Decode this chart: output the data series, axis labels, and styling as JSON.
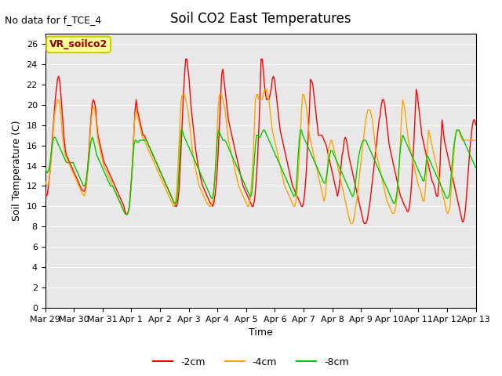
{
  "title": "Soil CO2 East Temperatures",
  "no_data_text": "No data for f_TCE_4",
  "ylabel": "Soil Temperature (C)",
  "xlabel": "Time",
  "annotation_label": "VR_soilco2",
  "ylim": [
    0,
    27
  ],
  "yticks": [
    0,
    2,
    4,
    6,
    8,
    10,
    12,
    14,
    16,
    18,
    20,
    22,
    24,
    26
  ],
  "x_tick_labels": [
    "Mar 29",
    "Mar 30",
    "Mar 31",
    "Apr 1",
    "Apr 2",
    "Apr 3",
    "Apr 4",
    "Apr 5",
    "Apr 6",
    "Apr 7",
    "Apr 8",
    "Apr 9",
    "Apr 10",
    "Apr 11",
    "Apr 12",
    "Apr 13"
  ],
  "colors": {
    "2cm": "#ff0000",
    "4cm": "#ffa500",
    "8cm": "#00cc00"
  },
  "background_color": "#e8e8e8",
  "legend_labels": [
    "-2cm",
    "-4cm",
    "-8cm"
  ],
  "num_points": 336,
  "data_2cm": [
    11.5,
    11.0,
    11.2,
    12.0,
    13.0,
    14.5,
    16.0,
    17.5,
    19.0,
    20.5,
    21.5,
    22.5,
    22.8,
    22.3,
    21.0,
    19.5,
    18.0,
    16.5,
    15.5,
    15.0,
    14.8,
    14.5,
    14.3,
    14.0,
    13.8,
    13.5,
    13.3,
    13.0,
    12.8,
    12.5,
    12.3,
    12.0,
    11.8,
    11.6,
    11.5,
    11.5,
    12.0,
    12.8,
    14.0,
    15.5,
    17.5,
    19.0,
    20.2,
    20.5,
    20.2,
    19.5,
    18.0,
    17.0,
    16.5,
    16.0,
    15.5,
    15.0,
    14.5,
    14.2,
    14.0,
    13.8,
    13.5,
    13.3,
    13.0,
    12.8,
    12.5,
    12.3,
    12.0,
    11.8,
    11.5,
    11.3,
    11.0,
    10.8,
    10.5,
    10.3,
    10.0,
    9.5,
    9.3,
    9.2,
    9.5,
    10.0,
    11.5,
    13.0,
    15.0,
    17.5,
    19.5,
    20.5,
    19.5,
    19.0,
    18.5,
    18.0,
    17.5,
    17.0,
    17.0,
    16.8,
    16.5,
    16.3,
    16.0,
    15.8,
    15.5,
    15.3,
    15.0,
    14.8,
    14.5,
    14.3,
    14.0,
    13.8,
    13.5,
    13.3,
    13.0,
    12.8,
    12.5,
    12.2,
    12.0,
    11.8,
    11.5,
    11.3,
    11.0,
    10.8,
    10.5,
    10.3,
    10.0,
    10.0,
    10.5,
    11.5,
    13.5,
    16.0,
    18.5,
    21.0,
    23.0,
    24.5,
    24.5,
    23.5,
    22.5,
    21.0,
    19.5,
    18.5,
    17.5,
    16.5,
    15.5,
    14.8,
    14.0,
    13.5,
    13.0,
    12.5,
    12.0,
    11.8,
    11.5,
    11.3,
    11.0,
    10.8,
    10.5,
    10.3,
    10.2,
    10.0,
    10.3,
    11.0,
    12.0,
    13.5,
    15.5,
    18.0,
    20.5,
    23.0,
    23.5,
    22.5,
    21.5,
    20.5,
    19.5,
    18.5,
    18.0,
    17.5,
    17.0,
    16.5,
    16.0,
    15.5,
    15.0,
    14.5,
    14.0,
    13.5,
    13.0,
    12.5,
    12.0,
    11.8,
    11.5,
    11.3,
    11.0,
    10.8,
    10.5,
    10.3,
    10.0,
    10.0,
    10.5,
    11.5,
    13.0,
    15.0,
    17.5,
    20.5,
    24.5,
    24.5,
    23.5,
    22.0,
    21.0,
    20.5,
    20.5,
    20.5,
    21.0,
    21.5,
    22.5,
    22.8,
    22.5,
    21.5,
    20.5,
    19.5,
    18.5,
    17.5,
    17.0,
    16.5,
    16.0,
    15.5,
    15.0,
    14.5,
    14.0,
    13.5,
    13.0,
    12.5,
    12.0,
    11.8,
    11.5,
    11.3,
    11.0,
    10.8,
    10.5,
    10.3,
    10.0,
    10.0,
    10.5,
    11.5,
    13.0,
    15.0,
    17.0,
    19.5,
    22.5,
    22.3,
    22.0,
    21.0,
    20.0,
    19.0,
    18.0,
    17.0,
    17.0,
    17.0,
    17.0,
    16.8,
    16.5,
    16.3,
    16.0,
    15.5,
    15.0,
    14.5,
    14.0,
    13.5,
    13.0,
    12.5,
    12.0,
    11.5,
    11.0,
    11.5,
    12.5,
    13.8,
    15.0,
    15.5,
    16.5,
    16.8,
    16.5,
    15.8,
    15.0,
    14.5,
    14.0,
    13.5,
    13.0,
    12.5,
    12.0,
    11.5,
    11.0,
    10.5,
    10.0,
    9.5,
    9.0,
    8.5,
    8.3,
    8.3,
    8.5,
    9.0,
    9.8,
    10.5,
    11.5,
    12.5,
    13.5,
    14.5,
    15.5,
    16.5,
    17.5,
    18.5,
    19.0,
    20.0,
    20.5,
    20.5,
    20.0,
    19.0,
    18.0,
    17.0,
    16.0,
    15.5,
    15.0,
    14.5,
    14.0,
    13.5,
    13.0,
    12.5,
    12.0,
    11.5,
    11.0,
    10.8,
    10.5,
    10.2,
    10.0,
    9.8,
    9.5,
    9.5,
    10.0,
    11.0,
    12.5,
    14.5,
    16.5,
    19.0,
    21.5,
    21.0,
    20.0,
    19.0,
    18.0,
    17.0,
    16.5,
    16.0,
    15.5,
    15.0,
    14.5,
    14.0,
    13.5,
    13.0,
    12.5,
    12.3,
    12.0,
    11.5,
    11.0,
    11.0,
    12.0,
    13.5,
    16.5,
    18.5,
    17.5,
    16.5,
    16.0,
    15.5,
    15.0,
    14.5,
    14.0,
    13.5,
    13.0,
    12.5,
    12.0,
    11.5,
    11.0,
    10.5,
    10.0,
    9.5,
    9.0,
    8.5,
    8.5,
    9.0,
    10.0,
    11.5,
    13.0,
    14.5,
    16.0,
    17.0,
    18.0,
    18.5,
    18.5,
    18.0
  ],
  "data_4cm": [
    12.5,
    12.2,
    12.0,
    12.2,
    13.0,
    14.0,
    15.5,
    17.0,
    18.5,
    19.5,
    20.0,
    20.5,
    20.5,
    20.0,
    19.0,
    17.5,
    16.5,
    15.5,
    15.0,
    14.8,
    14.5,
    14.3,
    14.0,
    13.8,
    13.5,
    13.3,
    13.0,
    12.8,
    12.5,
    12.3,
    12.0,
    11.8,
    11.5,
    11.3,
    11.1,
    11.0,
    11.5,
    12.3,
    13.5,
    15.0,
    17.0,
    18.5,
    19.5,
    19.8,
    19.5,
    18.8,
    17.5,
    16.5,
    16.0,
    15.5,
    15.0,
    14.5,
    14.0,
    13.8,
    13.5,
    13.3,
    13.0,
    12.8,
    12.5,
    12.3,
    12.0,
    11.8,
    11.5,
    11.3,
    11.0,
    10.8,
    10.5,
    10.3,
    10.0,
    9.8,
    9.5,
    9.3,
    9.2,
    9.2,
    9.5,
    10.0,
    11.5,
    13.0,
    15.0,
    17.5,
    19.0,
    19.5,
    18.8,
    18.5,
    18.0,
    17.5,
    17.0,
    16.8,
    16.5,
    16.3,
    16.0,
    15.8,
    15.5,
    15.3,
    15.0,
    14.8,
    14.5,
    14.3,
    14.0,
    13.8,
    13.5,
    13.3,
    13.0,
    12.8,
    12.5,
    12.2,
    12.0,
    11.8,
    11.5,
    11.3,
    11.0,
    10.8,
    10.5,
    10.3,
    10.0,
    10.0,
    10.5,
    11.5,
    13.5,
    16.0,
    18.5,
    20.5,
    21.0,
    21.0,
    21.0,
    20.5,
    20.0,
    19.5,
    18.5,
    17.5,
    16.5,
    15.5,
    14.8,
    14.0,
    13.5,
    13.0,
    12.5,
    12.0,
    11.8,
    11.5,
    11.3,
    11.0,
    10.8,
    10.5,
    10.3,
    10.2,
    10.0,
    10.0,
    10.2,
    10.5,
    11.5,
    13.0,
    15.0,
    17.5,
    20.0,
    21.0,
    21.0,
    21.0,
    20.5,
    20.0,
    19.5,
    18.5,
    17.5,
    16.5,
    16.0,
    15.5,
    15.0,
    14.5,
    14.0,
    13.5,
    13.0,
    12.5,
    12.0,
    11.8,
    11.5,
    11.3,
    11.0,
    10.8,
    10.5,
    10.3,
    10.0,
    10.0,
    10.5,
    11.5,
    13.0,
    15.0,
    17.5,
    20.5,
    21.0,
    21.0,
    20.5,
    20.5,
    20.5,
    20.5,
    21.0,
    21.5,
    21.5,
    21.5,
    21.0,
    20.5,
    19.5,
    18.5,
    17.5,
    17.0,
    16.5,
    16.0,
    15.5,
    15.0,
    14.5,
    14.0,
    13.5,
    13.0,
    12.5,
    12.0,
    11.8,
    11.5,
    11.3,
    11.0,
    10.8,
    10.5,
    10.3,
    10.0,
    10.0,
    10.5,
    11.5,
    13.0,
    15.0,
    17.0,
    19.5,
    21.0,
    21.0,
    20.5,
    20.0,
    19.0,
    18.0,
    17.0,
    16.5,
    16.0,
    15.5,
    15.0,
    14.5,
    14.0,
    13.5,
    13.0,
    12.5,
    12.0,
    11.5,
    11.0,
    10.5,
    11.0,
    12.0,
    13.5,
    15.5,
    16.0,
    16.5,
    16.5,
    16.0,
    15.5,
    15.0,
    14.5,
    14.0,
    13.5,
    13.0,
    12.5,
    12.0,
    11.5,
    11.0,
    10.5,
    10.0,
    9.5,
    9.0,
    8.5,
    8.3,
    8.3,
    8.5,
    9.0,
    9.8,
    10.5,
    11.5,
    12.5,
    13.5,
    14.5,
    15.5,
    16.5,
    17.5,
    18.5,
    19.0,
    19.5,
    19.5,
    19.5,
    19.0,
    18.5,
    17.5,
    16.5,
    15.5,
    15.0,
    14.5,
    14.0,
    13.5,
    13.0,
    12.5,
    12.0,
    11.5,
    11.0,
    10.5,
    10.3,
    10.0,
    9.8,
    9.5,
    9.3,
    9.3,
    9.5,
    10.0,
    11.0,
    12.5,
    14.5,
    16.5,
    19.0,
    20.5,
    20.0,
    19.5,
    18.5,
    17.5,
    16.5,
    16.0,
    15.5,
    15.0,
    14.5,
    14.0,
    13.5,
    13.0,
    12.5,
    12.0,
    11.8,
    11.5,
    11.0,
    10.5,
    10.5,
    11.5,
    13.0,
    16.0,
    17.5,
    17.0,
    16.5,
    16.0,
    15.5,
    15.0,
    14.5,
    14.0,
    13.5,
    13.0,
    12.5,
    12.0,
    11.5,
    11.0,
    10.5,
    10.0,
    9.5,
    9.3,
    9.5,
    10.0,
    11.5,
    13.0,
    14.5,
    16.0,
    17.0,
    17.5,
    17.5,
    17.5,
    17.0,
    16.8,
    16.5,
    16.5,
    16.5,
    16.5,
    16.5,
    16.5,
    16.5,
    16.5,
    16.5,
    16.5,
    16.5,
    16.5,
    16.5
  ],
  "data_8cm": [
    13.8,
    13.5,
    13.3,
    13.5,
    14.0,
    14.8,
    15.8,
    16.5,
    16.8,
    16.8,
    16.5,
    16.3,
    16.0,
    15.8,
    15.5,
    15.3,
    15.0,
    14.8,
    14.5,
    14.3,
    14.3,
    14.3,
    14.3,
    14.3,
    14.3,
    14.3,
    14.0,
    13.8,
    13.5,
    13.3,
    13.0,
    12.8,
    12.5,
    12.3,
    12.0,
    12.0,
    12.3,
    13.0,
    13.8,
    14.8,
    15.8,
    16.5,
    16.8,
    16.5,
    16.0,
    15.5,
    15.0,
    14.8,
    14.5,
    14.3,
    14.0,
    13.8,
    13.5,
    13.3,
    13.0,
    12.8,
    12.5,
    12.3,
    12.0,
    12.0,
    12.0,
    11.8,
    11.5,
    11.3,
    11.0,
    10.8,
    10.5,
    10.3,
    10.0,
    9.8,
    9.5,
    9.3,
    9.2,
    9.2,
    9.5,
    10.0,
    11.5,
    13.0,
    14.5,
    16.0,
    16.5,
    16.5,
    16.3,
    16.3,
    16.5,
    16.5,
    16.5,
    16.5,
    16.5,
    16.5,
    16.5,
    16.3,
    16.0,
    15.8,
    15.5,
    15.3,
    15.0,
    14.8,
    14.5,
    14.3,
    14.0,
    13.8,
    13.5,
    13.3,
    13.0,
    12.8,
    12.5,
    12.3,
    12.0,
    11.8,
    11.5,
    11.3,
    11.0,
    10.8,
    10.5,
    10.3,
    10.3,
    10.5,
    11.5,
    13.5,
    15.5,
    17.5,
    17.5,
    17.0,
    16.8,
    16.5,
    16.3,
    16.0,
    15.8,
    15.5,
    15.3,
    15.0,
    14.8,
    14.5,
    14.3,
    14.0,
    13.8,
    13.5,
    13.3,
    13.0,
    12.8,
    12.5,
    12.3,
    12.0,
    11.8,
    11.5,
    11.3,
    11.0,
    10.8,
    10.8,
    11.5,
    13.0,
    14.5,
    16.5,
    17.5,
    17.3,
    17.0,
    16.8,
    16.5,
    16.5,
    16.5,
    16.3,
    16.0,
    15.8,
    15.5,
    15.3,
    15.0,
    14.8,
    14.5,
    14.3,
    14.0,
    13.8,
    13.5,
    13.3,
    13.0,
    12.8,
    12.5,
    12.3,
    12.0,
    11.8,
    11.5,
    11.3,
    11.0,
    11.0,
    11.5,
    13.0,
    14.5,
    16.0,
    17.0,
    17.0,
    16.8,
    16.8,
    17.0,
    17.3,
    17.5,
    17.5,
    17.3,
    17.0,
    16.8,
    16.5,
    16.3,
    16.0,
    15.8,
    15.5,
    15.3,
    15.0,
    14.8,
    14.5,
    14.3,
    14.0,
    13.8,
    13.5,
    13.3,
    13.0,
    12.8,
    12.5,
    12.3,
    12.0,
    11.8,
    11.5,
    11.3,
    11.0,
    11.0,
    11.5,
    13.0,
    15.0,
    16.5,
    17.5,
    17.5,
    17.0,
    16.8,
    16.5,
    16.3,
    16.0,
    15.8,
    15.5,
    15.3,
    15.0,
    14.8,
    14.5,
    14.3,
    14.0,
    13.8,
    13.5,
    13.3,
    13.0,
    12.8,
    12.5,
    12.3,
    12.3,
    12.8,
    13.5,
    14.5,
    15.0,
    15.5,
    15.5,
    15.3,
    15.0,
    14.8,
    14.5,
    14.3,
    14.0,
    13.8,
    13.5,
    13.3,
    13.0,
    12.8,
    12.5,
    12.3,
    12.0,
    11.8,
    11.5,
    11.3,
    11.0,
    11.0,
    11.5,
    12.3,
    13.3,
    14.3,
    15.0,
    15.5,
    16.0,
    16.3,
    16.5,
    16.5,
    16.5,
    16.3,
    16.0,
    15.8,
    15.5,
    15.3,
    15.0,
    14.8,
    14.5,
    14.3,
    14.0,
    13.8,
    13.5,
    13.3,
    13.0,
    12.8,
    12.5,
    12.3,
    12.0,
    11.8,
    11.5,
    11.3,
    11.0,
    10.8,
    10.5,
    10.3,
    10.3,
    10.8,
    11.5,
    12.8,
    14.3,
    15.8,
    16.5,
    17.0,
    16.8,
    16.5,
    16.3,
    16.0,
    15.8,
    15.5,
    15.3,
    15.0,
    14.8,
    14.5,
    14.3,
    14.0,
    13.8,
    13.5,
    13.3,
    13.0,
    12.8,
    12.5,
    12.5,
    13.3,
    14.5,
    15.0,
    14.8,
    14.5,
    14.3,
    14.0,
    13.8,
    13.5,
    13.3,
    13.0,
    12.8,
    12.5,
    12.3,
    12.0,
    11.8,
    11.5,
    11.3,
    11.0,
    10.8,
    10.8,
    11.0,
    11.5,
    13.0,
    14.3,
    15.5,
    16.3,
    17.0,
    17.5,
    17.5,
    17.5,
    17.3,
    17.0,
    16.8,
    16.5,
    16.3,
    16.0,
    15.8,
    15.5,
    15.3,
    15.0,
    14.8,
    14.5,
    14.3,
    14.0,
    13.8
  ]
}
